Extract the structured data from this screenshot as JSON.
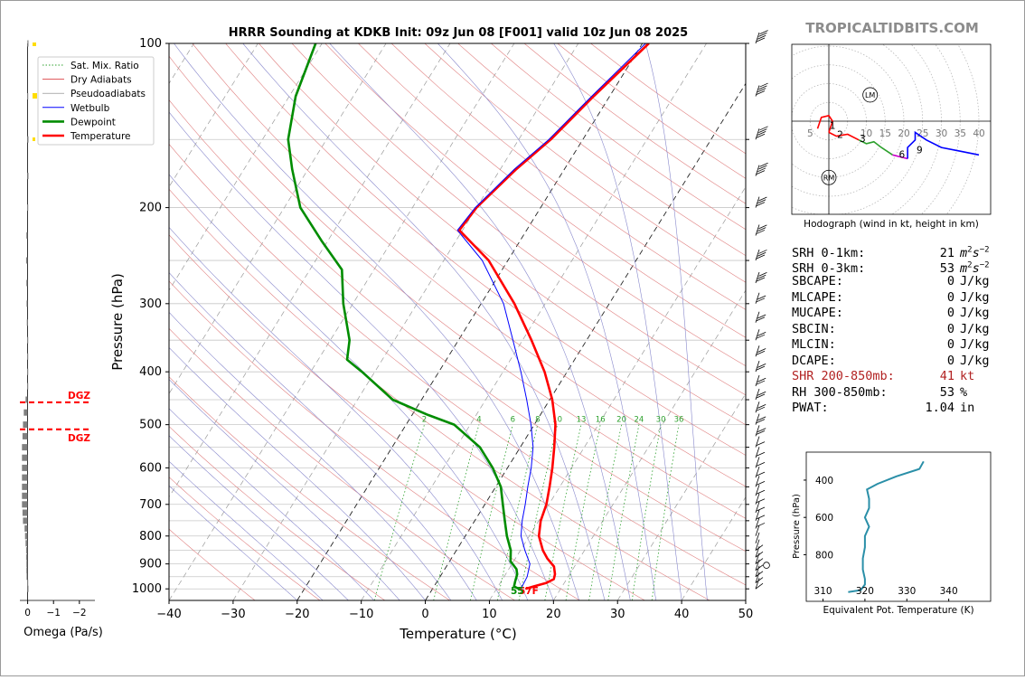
{
  "title": "HRRR Sounding at KDKB Init: 09z Jun 08 [F001] valid 10z Jun 08 2025",
  "watermark": "TROPICALTIDBITS.COM",
  "legend": {
    "items": [
      {
        "label": "Sat. Mix. Ratio",
        "color": "#2ca02c",
        "style": "dotted"
      },
      {
        "label": "Dry Adiabats",
        "color": "#d62728",
        "style": "thin"
      },
      {
        "label": "Pseudoadiabats",
        "color": "#7f7f7f",
        "style": "thin"
      },
      {
        "label": "Wetbulb",
        "color": "#0000ff",
        "style": "solid"
      },
      {
        "label": "Dewpoint",
        "color": "#008c00",
        "style": "bold"
      },
      {
        "label": "Temperature",
        "color": "#ff0000",
        "style": "bold"
      }
    ]
  },
  "skewt": {
    "xlabel": "Temperature (°C)",
    "ylabel": "Pressure (hPa)",
    "x_ticks": [
      "−40",
      "−30",
      "−20",
      "−10",
      "0",
      "10",
      "20",
      "30",
      "40",
      "50"
    ],
    "y_ticks": [
      "100",
      "200",
      "300",
      "400",
      "500",
      "600",
      "700",
      "800",
      "900",
      "1000"
    ],
    "mixing_ratio_labels": [
      "2",
      "4",
      "6",
      "8",
      "10",
      "13",
      "16",
      "20",
      "24",
      "30",
      "36"
    ],
    "surface_label_temp": "57F",
    "surface_label_dew": "55"
  },
  "omega": {
    "xlabel": "Omega (Pa/s)",
    "x_ticks": [
      "0",
      "−1",
      "−2"
    ],
    "dgz_label": "DGZ"
  },
  "hodograph": {
    "caption": "Hodograph (wind in kt, height in km)",
    "ring_labels": [
      "5",
      "10",
      "15",
      "20",
      "25",
      "30",
      "35",
      "40"
    ],
    "height_labels": [
      "1",
      "2",
      "3",
      "6",
      "9"
    ],
    "lm_label": "LM",
    "rm_label": "RM"
  },
  "indices": [
    {
      "label": "SRH 0-1km:",
      "value": "21",
      "unit": "m2s-2",
      "color": "#000000"
    },
    {
      "label": "SRH 0-3km:",
      "value": "53",
      "unit": "m2s-2",
      "color": "#000000"
    },
    {
      "label": "SBCAPE:",
      "value": "0",
      "unit": "J/kg",
      "color": "#000000"
    },
    {
      "label": "MLCAPE:",
      "value": "0",
      "unit": "J/kg",
      "color": "#000000"
    },
    {
      "label": "MUCAPE:",
      "value": "0",
      "unit": "J/kg",
      "color": "#000000"
    },
    {
      "label": "SBCIN:",
      "value": "0",
      "unit": "J/kg",
      "color": "#000000"
    },
    {
      "label": "MLCIN:",
      "value": "0",
      "unit": "J/kg",
      "color": "#000000"
    },
    {
      "label": "DCAPE:",
      "value": "0",
      "unit": "J/kg",
      "color": "#000000"
    },
    {
      "label": "SHR 200-850mb:",
      "value": "41",
      "unit": "kt",
      "color": "#b22222"
    },
    {
      "label": "RH 300-850mb:",
      "value": "53",
      "unit": "%",
      "color": "#000000"
    },
    {
      "label": "PWAT:",
      "value": "1.04",
      "unit": "in",
      "color": "#000000"
    }
  ],
  "theta_e": {
    "ylabel": "Pressure (hPa)",
    "xlabel": "Equivalent Pot. Temperature (K)",
    "x_ticks": [
      "310",
      "320",
      "330",
      "340"
    ],
    "y_ticks": [
      "400",
      "600",
      "800"
    ]
  },
  "chart_data": [
    {
      "type": "line",
      "name": "skew-t",
      "title": "HRRR Sounding at KDKB Init: 09z Jun 08 [F001] valid 10z Jun 08 2025",
      "xlabel": "Temperature (°C)",
      "ylabel": "Pressure (hPa)",
      "xlim": [
        -40,
        50
      ],
      "ylim": [
        1050,
        100
      ],
      "y_scale": "log",
      "series": [
        {
          "name": "Temperature",
          "color": "#ff0000",
          "points": [
            [
              1000,
              14.5
            ],
            [
              990,
              15.5
            ],
            [
              975,
              17.2
            ],
            [
              960,
              18.0
            ],
            [
              940,
              17.7
            ],
            [
              910,
              16.8
            ],
            [
              880,
              15.0
            ],
            [
              850,
              13.5
            ],
            [
              800,
              11.5
            ],
            [
              750,
              10.3
            ],
            [
              700,
              9.6
            ],
            [
              650,
              8.4
            ],
            [
              600,
              7.0
            ],
            [
              550,
              5.3
            ],
            [
              500,
              3.3
            ],
            [
              450,
              0.4
            ],
            [
              400,
              -3.5
            ],
            [
              350,
              -8.6
            ],
            [
              300,
              -14.8
            ],
            [
              250,
              -23.0
            ],
            [
              220,
              -30.5
            ],
            [
              200,
              -30.0
            ],
            [
              170,
              -27.5
            ],
            [
              150,
              -25.0
            ],
            [
              125,
              -22.5
            ],
            [
              100,
              -19.0
            ]
          ]
        },
        {
          "name": "Dewpoint",
          "color": "#008c00",
          "points": [
            [
              1000,
              13.5
            ],
            [
              990,
              12.5
            ],
            [
              970,
              12.2
            ],
            [
              940,
              11.8
            ],
            [
              920,
              11.2
            ],
            [
              890,
              9.5
            ],
            [
              850,
              8.5
            ],
            [
              800,
              6.5
            ],
            [
              750,
              4.7
            ],
            [
              700,
              2.8
            ],
            [
              650,
              0.8
            ],
            [
              600,
              -2.3
            ],
            [
              550,
              -6.3
            ],
            [
              500,
              -12.5
            ],
            [
              480,
              -17.5
            ],
            [
              450,
              -24.5
            ],
            [
              400,
              -32.0
            ],
            [
              380,
              -35.5
            ],
            [
              350,
              -37.0
            ],
            [
              300,
              -41.5
            ],
            [
              260,
              -45.0
            ],
            [
              230,
              -51.0
            ],
            [
              200,
              -57.5
            ],
            [
              170,
              -62.5
            ],
            [
              150,
              -66.0
            ],
            [
              125,
              -69.0
            ],
            [
              100,
              -71.0
            ]
          ]
        },
        {
          "name": "Wetbulb",
          "color": "#0000ff",
          "points": [
            [
              1000,
              13.8
            ],
            [
              950,
              13.6
            ],
            [
              900,
              12.8
            ],
            [
              850,
              10.7
            ],
            [
              800,
              8.7
            ],
            [
              750,
              7.4
            ],
            [
              700,
              6.3
            ],
            [
              650,
              5.0
            ],
            [
              600,
              3.7
            ],
            [
              550,
              2.0
            ],
            [
              500,
              -0.5
            ],
            [
              450,
              -3.6
            ],
            [
              400,
              -7.2
            ],
            [
              350,
              -11.5
            ],
            [
              300,
              -16.5
            ],
            [
              250,
              -24.0
            ],
            [
              220,
              -30.8
            ],
            [
              200,
              -30.2
            ],
            [
              170,
              -27.8
            ],
            [
              150,
              -25.3
            ],
            [
              125,
              -22.8
            ],
            [
              100,
              -19.5
            ]
          ]
        }
      ]
    },
    {
      "type": "bar",
      "name": "omega",
      "xlabel": "Omega (Pa/s)",
      "xlim": [
        0.3,
        -2.6
      ],
      "dgz_pressures": [
        455,
        510
      ],
      "levels": [
        100,
        125,
        150,
        175,
        200,
        225,
        250,
        275,
        300,
        325,
        350,
        375,
        400,
        425,
        450,
        475,
        500,
        525,
        550,
        575,
        600,
        625,
        650,
        675,
        700,
        725,
        750,
        775,
        800,
        825,
        850,
        875,
        900,
        925,
        950,
        975,
        1000
      ],
      "values": [
        -0.01,
        -0.02,
        -0.01,
        -0.01,
        -0.02,
        -0.05,
        -0.06,
        -0.05,
        -0.04,
        -0.03,
        -0.02,
        -0.02,
        -0.02,
        -0.02,
        -0.08,
        -0.15,
        -0.18,
        -0.2,
        -0.22,
        -0.22,
        -0.22,
        -0.22,
        -0.22,
        -0.22,
        -0.22,
        -0.2,
        -0.18,
        -0.12,
        -0.1,
        -0.08,
        -0.06,
        -0.06,
        -0.05,
        -0.05,
        -0.04,
        -0.02,
        -0.01
      ]
    },
    {
      "type": "line",
      "name": "hodograph",
      "unit": "kt",
      "series": [
        {
          "name": "0-1 km",
          "color": "#ff0000",
          "points": [
            [
              -3,
              -2
            ],
            [
              -2,
              1
            ],
            [
              0,
              1.5
            ],
            [
              1,
              0
            ],
            [
              0,
              -3
            ]
          ]
        },
        {
          "name": "1-3 km",
          "color": "#ff0000",
          "points": [
            [
              0,
              -3
            ],
            [
              2,
              -4
            ],
            [
              5,
              -3.5
            ],
            [
              8,
              -5
            ]
          ]
        },
        {
          "name": "3-6 km",
          "color": "#2ca02c",
          "points": [
            [
              8,
              -5
            ],
            [
              10,
              -6
            ],
            [
              12,
              -5.5
            ],
            [
              14,
              -7
            ],
            [
              17,
              -9
            ]
          ]
        },
        {
          "name": "6-9 km",
          "color": "#cc00cc",
          "points": [
            [
              17,
              -9
            ],
            [
              21,
              -10
            ]
          ]
        },
        {
          "name": "9+ km",
          "color": "#0000ff",
          "points": [
            [
              21,
              -10
            ],
            [
              21,
              -7
            ],
            [
              23,
              -5
            ],
            [
              23,
              -3
            ],
            [
              26,
              -5
            ],
            [
              30,
              -7
            ],
            [
              35,
              -8
            ],
            [
              40,
              -9
            ]
          ]
        }
      ],
      "lm": [
        11,
        7
      ],
      "rm": [
        0,
        -15
      ]
    },
    {
      "type": "line",
      "name": "theta-e",
      "xlabel": "Equivalent Pot. Temperature (K)",
      "ylabel": "Pressure (hPa)",
      "xlim": [
        306,
        350
      ],
      "ylim": [
        1050,
        250
      ],
      "points": [
        [
          1000,
          316
        ],
        [
          990,
          319
        ],
        [
          960,
          320
        ],
        [
          930,
          320
        ],
        [
          880,
          319.5
        ],
        [
          820,
          319.5
        ],
        [
          760,
          320
        ],
        [
          700,
          320
        ],
        [
          650,
          321
        ],
        [
          600,
          320
        ],
        [
          550,
          321
        ],
        [
          500,
          321
        ],
        [
          450,
          320.5
        ],
        [
          420,
          323
        ],
        [
          380,
          327.5
        ],
        [
          340,
          333
        ],
        [
          300,
          334
        ]
      ]
    }
  ]
}
